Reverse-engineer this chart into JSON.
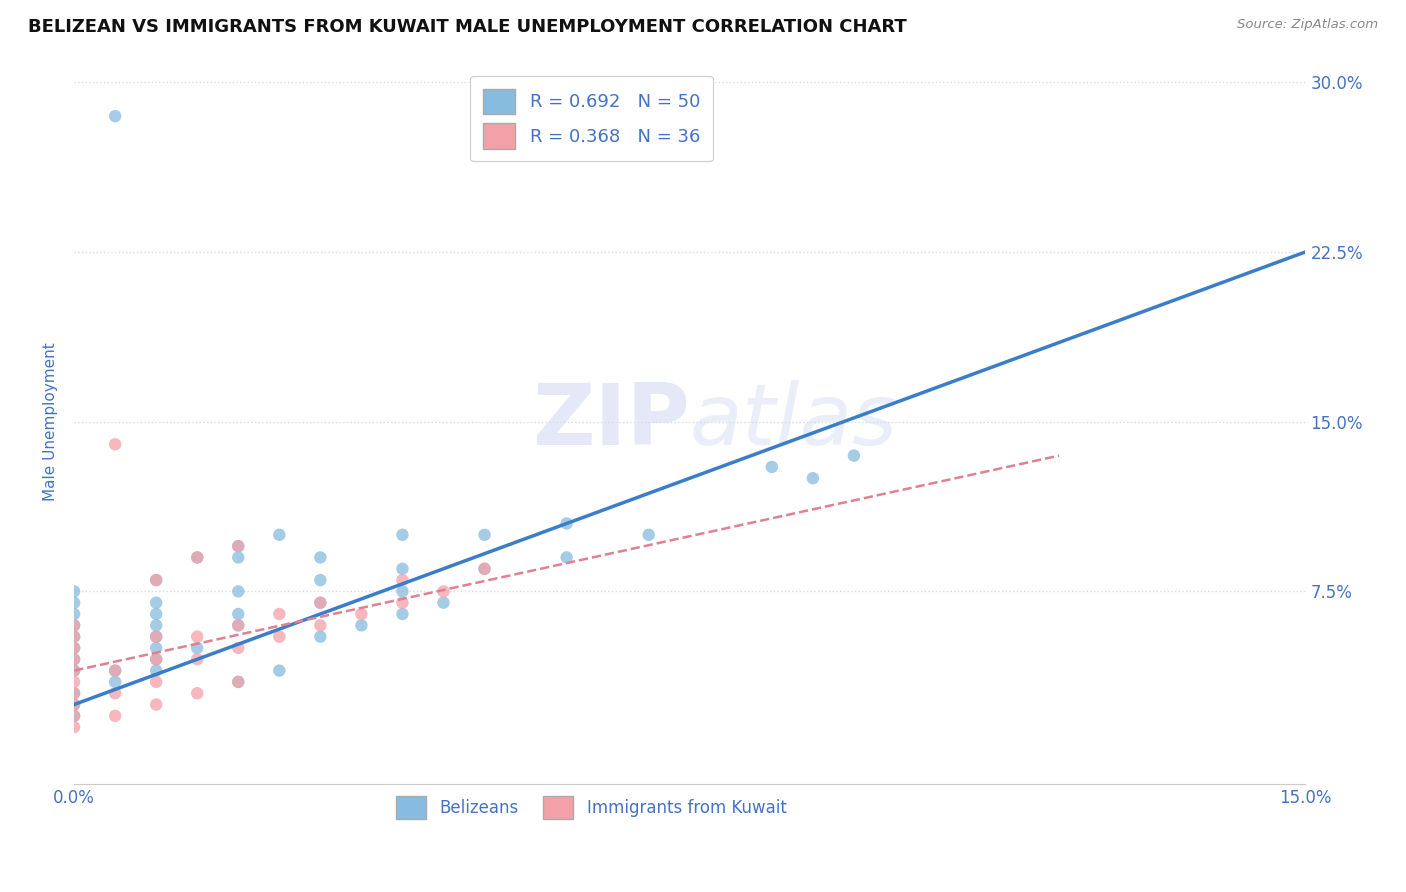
{
  "title": "BELIZEAN VS IMMIGRANTS FROM KUWAIT MALE UNEMPLOYMENT CORRELATION CHART",
  "source": "Source: ZipAtlas.com",
  "ylabel": "Male Unemployment",
  "xlim": [
    0.0,
    0.15
  ],
  "ylim": [
    -0.01,
    0.31
  ],
  "xticks": [
    0.0,
    0.15
  ],
  "xtick_labels": [
    "0.0%",
    "15.0%"
  ],
  "yticks": [
    0.075,
    0.15,
    0.225,
    0.3
  ],
  "ytick_labels": [
    "7.5%",
    "15.0%",
    "22.5%",
    "30.0%"
  ],
  "grid_yticks": [
    0.075,
    0.15,
    0.225,
    0.3
  ],
  "legend_labels": [
    "Belizeans",
    "Immigrants from Kuwait"
  ],
  "legend_R": [
    0.692,
    0.368
  ],
  "legend_N": [
    50,
    36
  ],
  "blue_color": "#87BBDF",
  "pink_color": "#F4A0A8",
  "blue_line_color": "#3A7DC9",
  "pink_line_color": "#E08090",
  "text_color": "#4472C4",
  "blue_scatter_x": [
    0.0,
    0.0,
    0.0,
    0.0,
    0.0,
    0.0,
    0.0,
    0.0,
    0.01,
    0.01,
    0.01,
    0.01,
    0.01,
    0.01,
    0.02,
    0.02,
    0.02,
    0.02,
    0.03,
    0.03,
    0.03,
    0.04,
    0.04,
    0.04,
    0.05,
    0.05,
    0.06,
    0.06,
    0.07,
    0.085,
    0.09,
    0.095,
    0.0,
    0.0,
    0.0,
    0.005,
    0.005,
    0.01,
    0.01,
    0.015,
    0.02,
    0.025,
    0.03,
    0.035,
    0.04,
    0.045,
    0.005,
    0.015,
    0.02,
    0.025
  ],
  "blue_scatter_y": [
    0.04,
    0.045,
    0.05,
    0.055,
    0.06,
    0.065,
    0.07,
    0.075,
    0.05,
    0.055,
    0.06,
    0.065,
    0.07,
    0.08,
    0.06,
    0.065,
    0.075,
    0.09,
    0.07,
    0.08,
    0.09,
    0.075,
    0.085,
    0.1,
    0.085,
    0.1,
    0.09,
    0.105,
    0.1,
    0.13,
    0.125,
    0.135,
    0.02,
    0.025,
    0.03,
    0.035,
    0.04,
    0.04,
    0.045,
    0.05,
    0.035,
    0.04,
    0.055,
    0.06,
    0.065,
    0.07,
    0.285,
    0.09,
    0.095,
    0.1
  ],
  "pink_scatter_x": [
    0.0,
    0.0,
    0.0,
    0.0,
    0.0,
    0.0,
    0.0,
    0.0,
    0.0,
    0.005,
    0.005,
    0.01,
    0.01,
    0.01,
    0.015,
    0.015,
    0.02,
    0.02,
    0.025,
    0.025,
    0.03,
    0.03,
    0.035,
    0.04,
    0.04,
    0.045,
    0.05,
    0.005,
    0.01,
    0.015,
    0.02,
    0.0,
    0.005,
    0.01,
    0.015,
    0.02
  ],
  "pink_scatter_y": [
    0.02,
    0.025,
    0.03,
    0.035,
    0.04,
    0.045,
    0.05,
    0.055,
    0.06,
    0.03,
    0.04,
    0.035,
    0.045,
    0.055,
    0.045,
    0.055,
    0.05,
    0.06,
    0.055,
    0.065,
    0.06,
    0.07,
    0.065,
    0.07,
    0.08,
    0.075,
    0.085,
    0.14,
    0.08,
    0.09,
    0.095,
    0.015,
    0.02,
    0.025,
    0.03,
    0.035
  ],
  "blue_regline": [
    0.0,
    0.15,
    0.025,
    0.225
  ],
  "pink_regline": [
    0.0,
    0.12,
    0.04,
    0.135
  ],
  "grid_color": "#d8dce8",
  "background_color": "#ffffff",
  "title_fontsize": 13,
  "tick_color": "#4472C4"
}
